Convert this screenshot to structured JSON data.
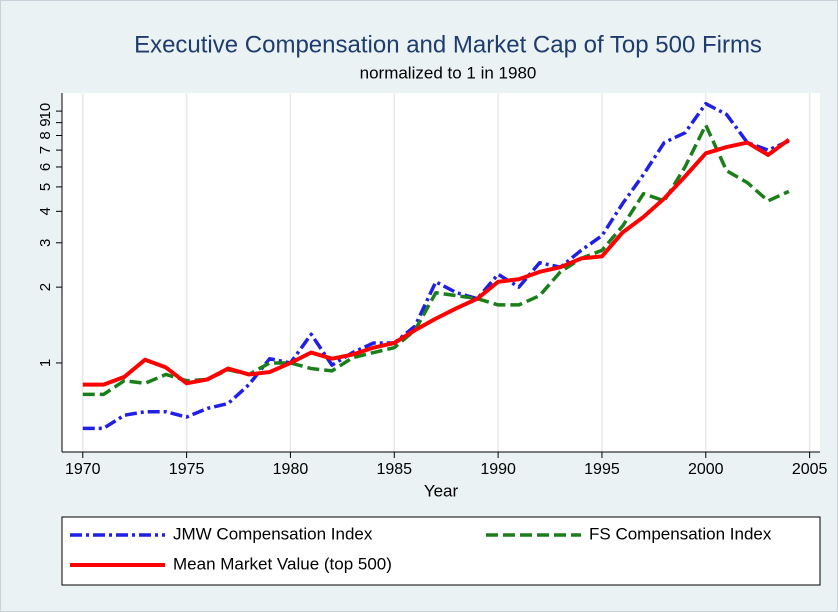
{
  "chart_data": {
    "type": "line",
    "title": "Executive Compensation and Market Cap of Top 500 Firms",
    "subtitle": "normalized to 1 in 1980",
    "x_label": "Year",
    "x": [
      1970,
      1971,
      1972,
      1973,
      1974,
      1975,
      1976,
      1977,
      1978,
      1979,
      1980,
      1981,
      1982,
      1983,
      1984,
      1985,
      1986,
      1987,
      1988,
      1989,
      1990,
      1991,
      1992,
      1993,
      1994,
      1995,
      1996,
      1997,
      1998,
      1999,
      2000,
      2001,
      2002,
      2003,
      2004
    ],
    "series": [
      {
        "name": "JMW Compensation Index",
        "color": "#1f1fe6",
        "dash": "12 4 3 4",
        "values": [
          0.55,
          0.55,
          0.62,
          0.64,
          0.64,
          0.61,
          0.66,
          0.69,
          0.82,
          1.04,
          1.0,
          1.3,
          0.98,
          1.1,
          1.2,
          1.2,
          1.4,
          2.1,
          1.9,
          1.8,
          2.25,
          2.0,
          2.5,
          2.4,
          2.8,
          3.2,
          4.3,
          5.6,
          7.5,
          8.2,
          10.7,
          9.7,
          7.5,
          7.0,
          7.6
        ]
      },
      {
        "name": "FS Compensation Index",
        "color": "#1a7f1a",
        "dash": "12 5",
        "values": [
          0.75,
          0.75,
          0.85,
          0.83,
          0.9,
          0.85,
          0.86,
          0.94,
          0.9,
          1.0,
          1.0,
          0.95,
          0.93,
          1.05,
          1.1,
          1.15,
          1.35,
          1.9,
          1.85,
          1.8,
          1.7,
          1.7,
          1.85,
          2.3,
          2.6,
          2.8,
          3.5,
          4.7,
          4.4,
          6.0,
          8.8,
          5.8,
          5.2,
          4.4,
          4.8
        ]
      },
      {
        "name": "Mean Market Value (top 500)",
        "color": "#ff0000",
        "dash": "none",
        "values": [
          0.82,
          0.82,
          0.88,
          1.03,
          0.96,
          0.83,
          0.86,
          0.95,
          0.9,
          0.92,
          1.0,
          1.1,
          1.04,
          1.08,
          1.15,
          1.2,
          1.35,
          1.5,
          1.65,
          1.8,
          2.1,
          2.15,
          2.3,
          2.4,
          2.6,
          2.65,
          3.3,
          3.8,
          4.5,
          5.5,
          6.8,
          7.2,
          7.5,
          6.7,
          7.7
        ]
      }
    ],
    "xlim": [
      1969,
      2005.5
    ],
    "xticks": [
      1970,
      1975,
      1980,
      1985,
      1990,
      1995,
      2000,
      2005
    ],
    "ylim": [
      0.443,
      11.8
    ],
    "yticks": [
      1,
      2,
      3,
      4,
      5,
      6,
      7,
      8,
      9,
      10
    ],
    "log_y": true,
    "x_grid": true,
    "legend": "bottom"
  }
}
